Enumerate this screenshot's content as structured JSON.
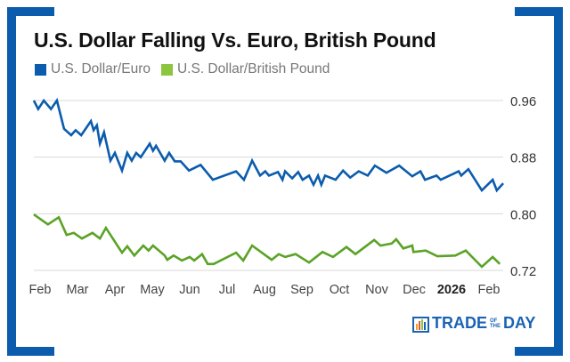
{
  "chart_data": {
    "type": "line",
    "title": "U.S. Dollar Falling Vs. Euro, British Pound",
    "xlabel": "",
    "ylabel": "",
    "x_unit": "months since Feb 2025",
    "x_ticks": [
      {
        "x": 0,
        "label": "Feb"
      },
      {
        "x": 1,
        "label": "Mar"
      },
      {
        "x": 2,
        "label": "Apr"
      },
      {
        "x": 3,
        "label": "May"
      },
      {
        "x": 4,
        "label": "Jun"
      },
      {
        "x": 5,
        "label": "Jul"
      },
      {
        "x": 6,
        "label": "Aug"
      },
      {
        "x": 7,
        "label": "Sep"
      },
      {
        "x": 8,
        "label": "Oct"
      },
      {
        "x": 9,
        "label": "Nov"
      },
      {
        "x": 10,
        "label": "Dec"
      },
      {
        "x": 11,
        "label": "2026",
        "bold": true
      },
      {
        "x": 12,
        "label": "Feb"
      }
    ],
    "y_ticks": [
      "0.96",
      "0.88",
      "0.80",
      "0.72"
    ],
    "ylim": [
      0.72,
      0.96
    ],
    "xlim": [
      -0.17,
      12.38
    ],
    "grid": true,
    "legend_position": "top-left",
    "series": [
      {
        "name": "U.S. Dollar/Euro",
        "color": "#0b5cad",
        "legend_color": "#0b5cad",
        "points": [
          [
            -0.17,
            0.96
          ],
          [
            -0.05,
            0.948
          ],
          [
            0.1,
            0.96
          ],
          [
            0.29,
            0.948
          ],
          [
            0.45,
            0.96
          ],
          [
            0.64,
            0.92
          ],
          [
            0.83,
            0.911
          ],
          [
            0.95,
            0.918
          ],
          [
            1.1,
            0.911
          ],
          [
            1.36,
            0.931
          ],
          [
            1.43,
            0.918
          ],
          [
            1.52,
            0.925
          ],
          [
            1.6,
            0.899
          ],
          [
            1.71,
            0.915
          ],
          [
            1.88,
            0.875
          ],
          [
            2.0,
            0.886
          ],
          [
            2.19,
            0.861
          ],
          [
            2.33,
            0.886
          ],
          [
            2.45,
            0.875
          ],
          [
            2.57,
            0.886
          ],
          [
            2.69,
            0.88
          ],
          [
            2.93,
            0.899
          ],
          [
            3.02,
            0.889
          ],
          [
            3.1,
            0.896
          ],
          [
            3.33,
            0.875
          ],
          [
            3.45,
            0.886
          ],
          [
            3.6,
            0.874
          ],
          [
            3.76,
            0.874
          ],
          [
            3.98,
            0.861
          ],
          [
            4.29,
            0.869
          ],
          [
            4.62,
            0.848
          ],
          [
            5.24,
            0.86
          ],
          [
            5.45,
            0.848
          ],
          [
            5.67,
            0.875
          ],
          [
            5.88,
            0.854
          ],
          [
            6.02,
            0.86
          ],
          [
            6.12,
            0.854
          ],
          [
            6.36,
            0.859
          ],
          [
            6.48,
            0.848
          ],
          [
            6.55,
            0.86
          ],
          [
            6.74,
            0.85
          ],
          [
            6.9,
            0.859
          ],
          [
            7.02,
            0.848
          ],
          [
            7.19,
            0.854
          ],
          [
            7.31,
            0.841
          ],
          [
            7.43,
            0.854
          ],
          [
            7.52,
            0.841
          ],
          [
            7.62,
            0.854
          ],
          [
            7.9,
            0.848
          ],
          [
            8.1,
            0.861
          ],
          [
            8.29,
            0.851
          ],
          [
            8.52,
            0.86
          ],
          [
            8.76,
            0.854
          ],
          [
            8.95,
            0.868
          ],
          [
            9.26,
            0.858
          ],
          [
            9.6,
            0.868
          ],
          [
            9.95,
            0.853
          ],
          [
            10.17,
            0.86
          ],
          [
            10.29,
            0.848
          ],
          [
            10.6,
            0.854
          ],
          [
            10.71,
            0.848
          ],
          [
            11.19,
            0.86
          ],
          [
            11.26,
            0.854
          ],
          [
            11.45,
            0.863
          ],
          [
            11.81,
            0.833
          ],
          [
            12.1,
            0.848
          ],
          [
            12.21,
            0.833
          ],
          [
            12.38,
            0.843
          ]
        ]
      },
      {
        "name": "U.S. Dollar/British Pound",
        "color": "#5aa326",
        "legend_color": "#8cc63f",
        "points": [
          [
            -0.17,
            0.799
          ],
          [
            0.21,
            0.785
          ],
          [
            0.5,
            0.795
          ],
          [
            0.71,
            0.77
          ],
          [
            0.9,
            0.773
          ],
          [
            1.12,
            0.765
          ],
          [
            1.4,
            0.773
          ],
          [
            1.6,
            0.765
          ],
          [
            1.76,
            0.78
          ],
          [
            2.19,
            0.745
          ],
          [
            2.33,
            0.754
          ],
          [
            2.52,
            0.741
          ],
          [
            2.76,
            0.755
          ],
          [
            2.9,
            0.748
          ],
          [
            3.02,
            0.755
          ],
          [
            3.33,
            0.741
          ],
          [
            3.4,
            0.735
          ],
          [
            3.57,
            0.741
          ],
          [
            3.79,
            0.734
          ],
          [
            4.0,
            0.739
          ],
          [
            4.12,
            0.734
          ],
          [
            4.33,
            0.743
          ],
          [
            4.48,
            0.729
          ],
          [
            4.64,
            0.729
          ],
          [
            5.24,
            0.745
          ],
          [
            5.43,
            0.734
          ],
          [
            5.67,
            0.755
          ],
          [
            6.19,
            0.735
          ],
          [
            6.38,
            0.743
          ],
          [
            6.55,
            0.739
          ],
          [
            6.83,
            0.743
          ],
          [
            7.19,
            0.731
          ],
          [
            7.55,
            0.746
          ],
          [
            7.83,
            0.739
          ],
          [
            8.19,
            0.753
          ],
          [
            8.43,
            0.743
          ],
          [
            8.93,
            0.763
          ],
          [
            9.1,
            0.755
          ],
          [
            9.4,
            0.758
          ],
          [
            9.52,
            0.764
          ],
          [
            9.71,
            0.751
          ],
          [
            9.95,
            0.755
          ],
          [
            9.98,
            0.746
          ],
          [
            10.31,
            0.748
          ],
          [
            10.62,
            0.74
          ],
          [
            11.1,
            0.741
          ],
          [
            11.38,
            0.748
          ],
          [
            11.81,
            0.725
          ],
          [
            12.1,
            0.739
          ],
          [
            12.29,
            0.729
          ]
        ]
      }
    ]
  },
  "branding": {
    "logo_text": "TRADE",
    "logo_of": "OF",
    "logo_the": "THE",
    "logo_day": "DAY"
  }
}
